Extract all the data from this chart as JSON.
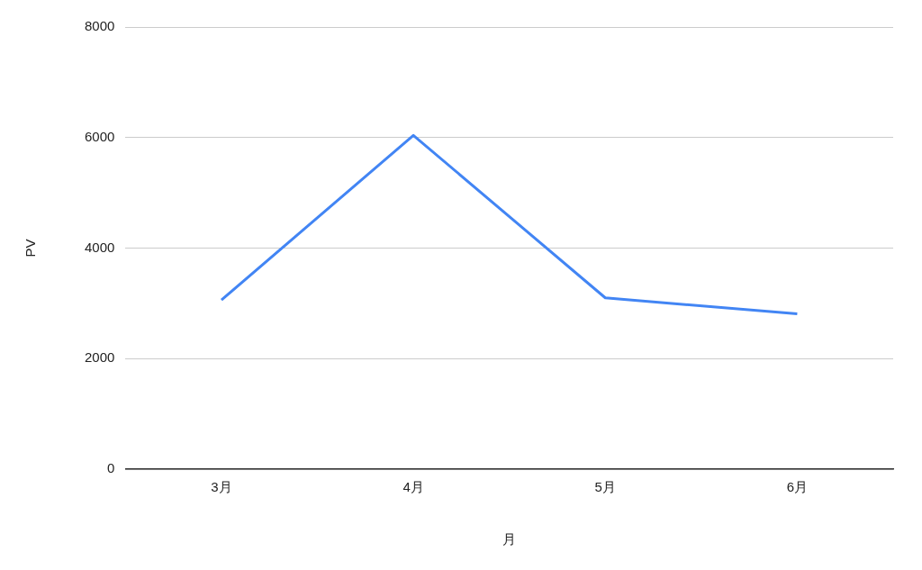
{
  "chart_data": {
    "type": "line",
    "xlabel": "月",
    "ylabel": "PV",
    "categories": [
      "3月",
      "4月",
      "5月",
      "6月"
    ],
    "series": [
      {
        "color": "#4285f4",
        "values": [
          3060,
          6040,
          3100,
          2810
        ]
      }
    ],
    "ylim": [
      0,
      8000
    ],
    "yticks": [
      0,
      2000,
      4000,
      6000,
      8000
    ],
    "grid": "y",
    "legend": false,
    "marker": "none",
    "line_style": "solid"
  }
}
